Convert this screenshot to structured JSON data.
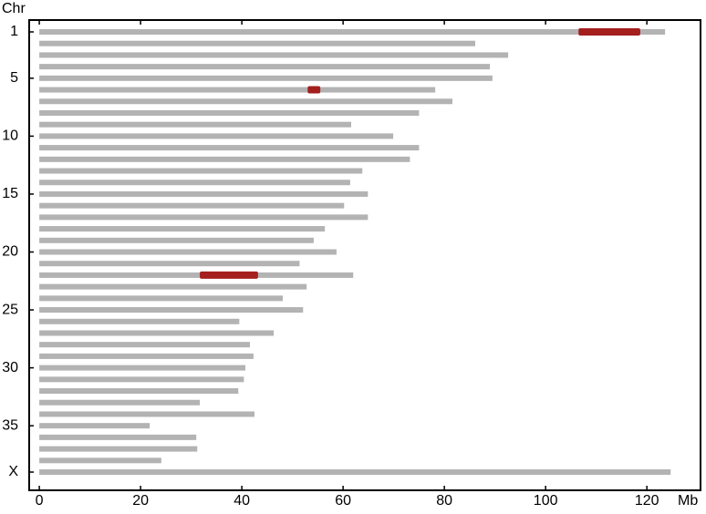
{
  "chart_data": {
    "type": "bar",
    "orientation": "horizontal",
    "y_label": "Chr",
    "x_label": "Mb",
    "categories": [
      "1",
      null,
      null,
      null,
      "5",
      null,
      null,
      null,
      null,
      "10",
      null,
      null,
      null,
      null,
      "15",
      null,
      null,
      null,
      null,
      "20",
      null,
      null,
      null,
      null,
      "25",
      null,
      null,
      null,
      null,
      "30",
      null,
      null,
      null,
      null,
      "35",
      null,
      null,
      null,
      "X"
    ],
    "values": [
      123.6,
      86.1,
      92.6,
      89.0,
      89.5,
      78.2,
      81.6,
      75.0,
      61.6,
      69.9,
      75.0,
      73.2,
      63.8,
      61.4,
      64.9,
      60.2,
      64.9,
      56.4,
      54.2,
      58.7,
      51.4,
      62.0,
      52.8,
      48.1,
      52.1,
      39.5,
      46.3,
      41.6,
      42.3,
      40.7,
      40.4,
      39.3,
      31.7,
      42.5,
      21.8,
      31.0,
      31.2,
      24.1,
      124.7
    ],
    "color": "#b3b3b3",
    "highlights": {
      "color": "#a51f1f",
      "starts": [
        106.5,
        null,
        null,
        null,
        null,
        53.0,
        null,
        null,
        null,
        null,
        null,
        null,
        null,
        null,
        null,
        null,
        null,
        null,
        null,
        null,
        null,
        31.7,
        null,
        null,
        null,
        null,
        null,
        null,
        null,
        null,
        null,
        null,
        null,
        null,
        null,
        null,
        null,
        null,
        null
      ],
      "ends": [
        118.7,
        null,
        null,
        null,
        null,
        55.5,
        null,
        null,
        null,
        null,
        null,
        null,
        null,
        null,
        null,
        null,
        null,
        null,
        null,
        null,
        null,
        43.2,
        null,
        null,
        null,
        null,
        null,
        null,
        null,
        null,
        null,
        null,
        null,
        null,
        null,
        null,
        null,
        null,
        null
      ]
    },
    "xlim": [
      -2,
      130.6
    ],
    "xticks": [
      0,
      20,
      40,
      60,
      80,
      100,
      120
    ]
  }
}
